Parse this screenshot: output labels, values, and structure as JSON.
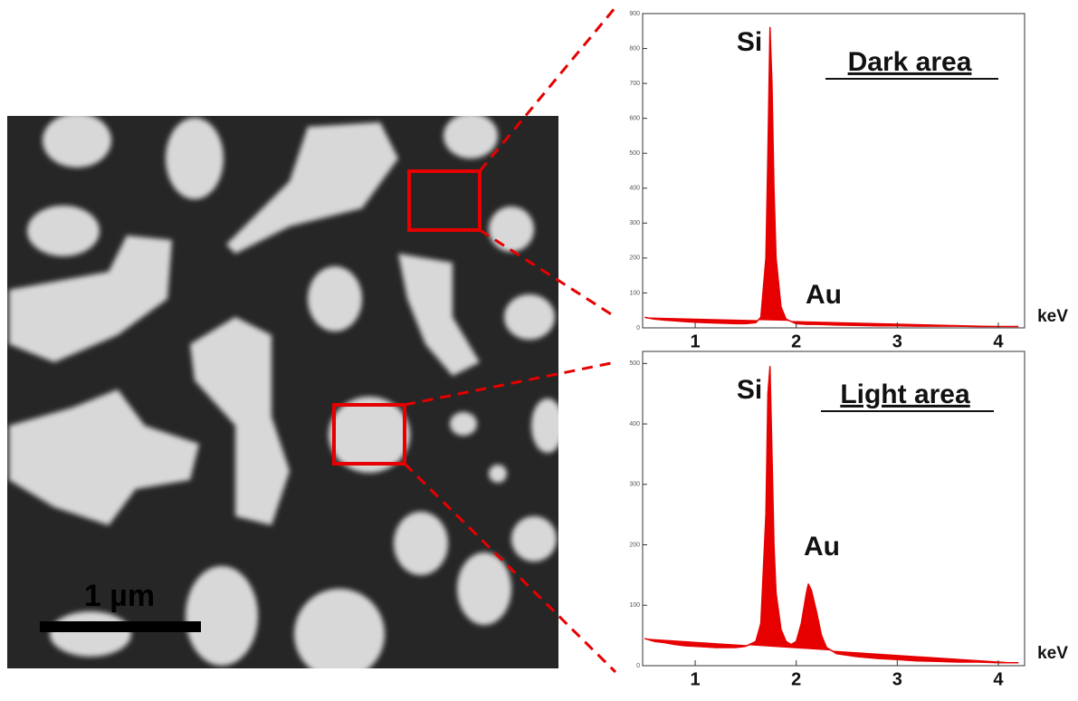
{
  "scale_bar_label": "1 µm",
  "chart_data": [
    {
      "type": "area",
      "title": "Dark area",
      "xlabel": "keV",
      "peak_labels": [
        "Si",
        "Au"
      ],
      "color": "#e60000",
      "xlim": [
        0.48,
        4.26
      ],
      "xticks": [
        1,
        2,
        3,
        4
      ],
      "ylim": [
        0,
        900
      ],
      "yticks": [
        0,
        100,
        200,
        300,
        400,
        500,
        600,
        700,
        800,
        900
      ],
      "x": [
        0.5,
        0.6,
        0.7,
        0.8,
        0.9,
        1.0,
        1.1,
        1.2,
        1.3,
        1.4,
        1.5,
        1.6,
        1.65,
        1.7,
        1.72,
        1.74,
        1.76,
        1.78,
        1.8,
        1.85,
        1.9,
        2.0,
        2.1,
        2.2,
        2.4,
        2.6,
        2.8,
        3.0,
        3.2,
        3.4,
        3.6,
        3.8,
        4.0,
        4.2
      ],
      "values": [
        30,
        25,
        22,
        20,
        18,
        16,
        15,
        14,
        13,
        12,
        12,
        15,
        30,
        200,
        500,
        860,
        700,
        400,
        200,
        60,
        25,
        12,
        10,
        10,
        8,
        7,
        6,
        6,
        5,
        5,
        5,
        4,
        4,
        4
      ]
    },
    {
      "type": "area",
      "title": "Light area",
      "xlabel": "keV",
      "peak_labels": [
        "Si",
        "Au"
      ],
      "color": "#e60000",
      "xlim": [
        0.48,
        4.26
      ],
      "xticks": [
        1,
        2,
        3,
        4
      ],
      "ylim": [
        0,
        520
      ],
      "yticks": [
        0,
        100,
        200,
        300,
        400,
        500
      ],
      "x": [
        0.5,
        0.6,
        0.7,
        0.8,
        0.9,
        1.0,
        1.1,
        1.2,
        1.3,
        1.4,
        1.5,
        1.6,
        1.65,
        1.7,
        1.72,
        1.74,
        1.76,
        1.78,
        1.8,
        1.85,
        1.9,
        1.95,
        2.0,
        2.05,
        2.1,
        2.12,
        2.15,
        2.2,
        2.25,
        2.3,
        2.4,
        2.6,
        2.8,
        3.0,
        3.2,
        3.4,
        3.6,
        3.8,
        4.0,
        4.2
      ],
      "values": [
        45,
        40,
        38,
        35,
        33,
        32,
        31,
        30,
        30,
        30,
        32,
        40,
        70,
        250,
        450,
        495,
        350,
        200,
        120,
        60,
        40,
        35,
        40,
        70,
        120,
        135,
        125,
        90,
        50,
        30,
        20,
        15,
        12,
        10,
        8,
        7,
        6,
        6,
        5,
        5
      ]
    }
  ]
}
